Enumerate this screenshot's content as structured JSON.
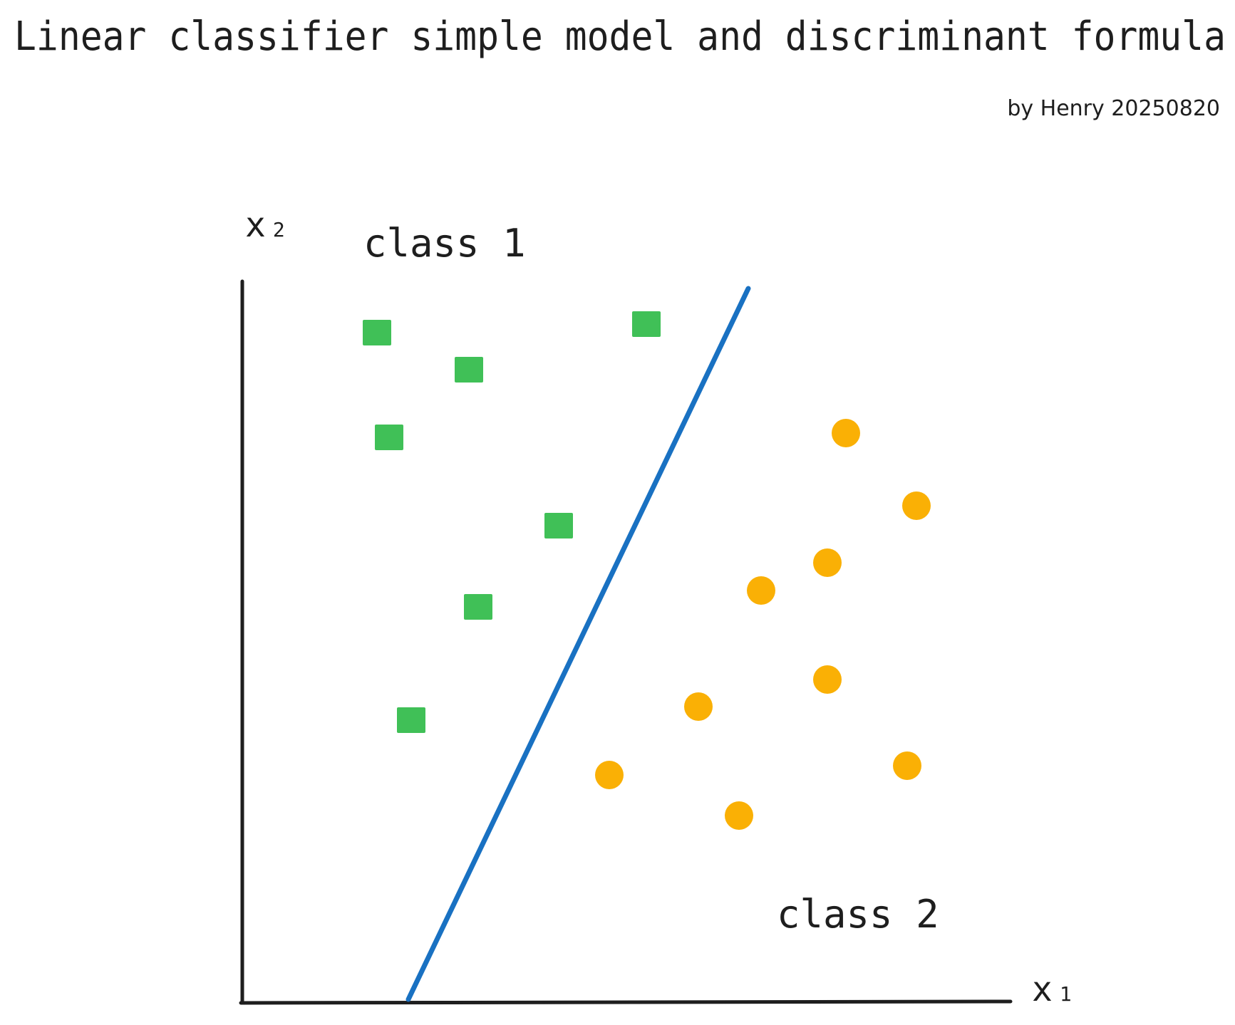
{
  "title": "Linear classifier simple model and discriminant formula",
  "credit": "by Henry 20250820",
  "labels": {
    "class1": "class 1",
    "class2": "class 2"
  },
  "axes": {
    "x_var": "x",
    "x_sub": "1",
    "y_var": "x",
    "y_sub": "2"
  },
  "colors": {
    "class1": "#40c057",
    "class2": "#fab005",
    "boundary": "#1971c2",
    "ink": "#1e1e1e"
  }
}
